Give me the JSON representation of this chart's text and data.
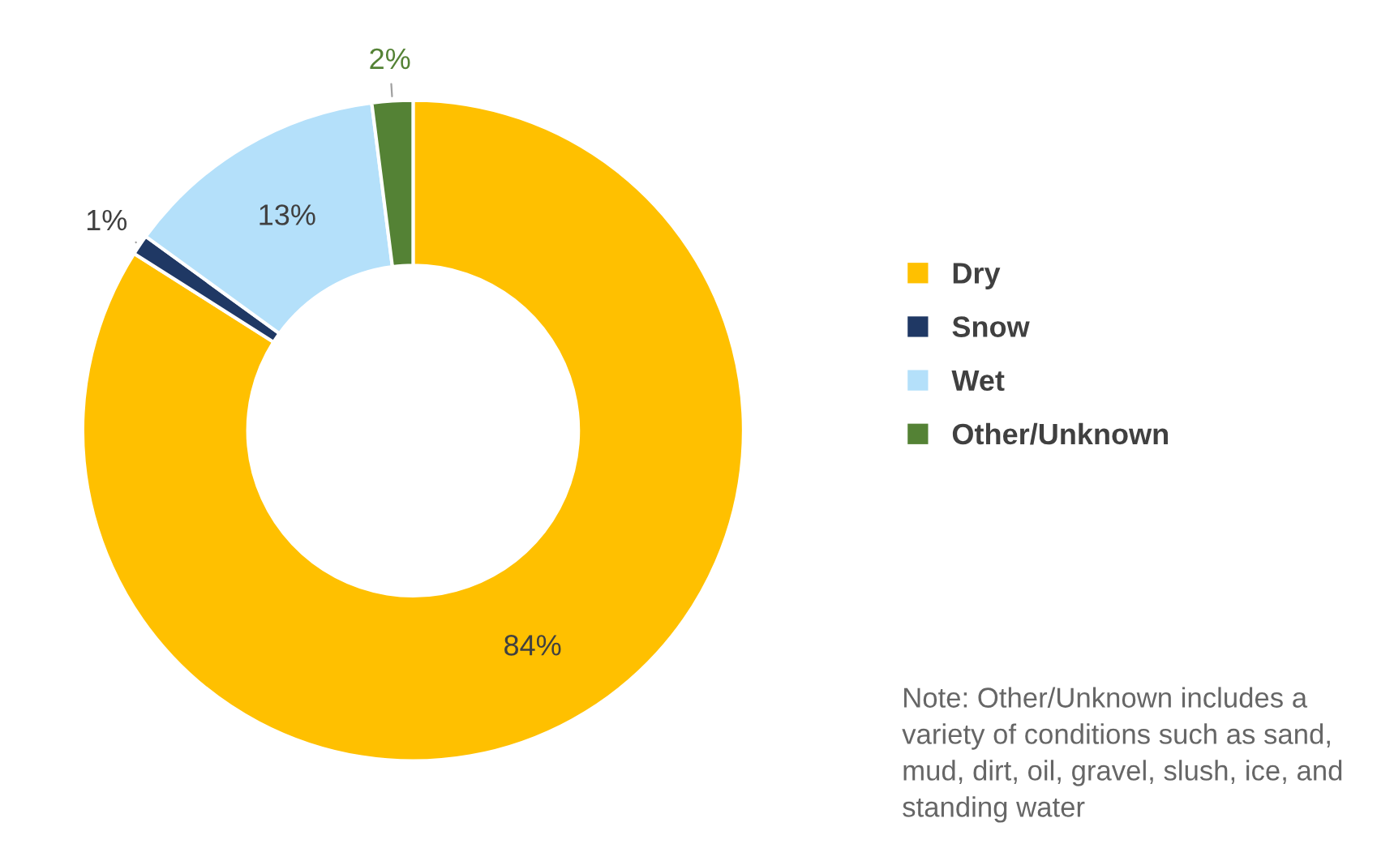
{
  "chart_data": {
    "type": "donut",
    "categories": [
      "Dry",
      "Snow",
      "Wet",
      "Other/Unknown"
    ],
    "values": [
      84,
      1,
      13,
      2
    ],
    "colors": [
      "#ffc000",
      "#1f3864",
      "#b4e0fa",
      "#548235"
    ],
    "value_labels": [
      "84%",
      "1%",
      "13%",
      "2%"
    ],
    "legend": "right",
    "annotations": [
      "Note: Other/Unknown includes a variety of conditions such as sand, mud, dirt, oil, gravel, slush, ice, and standing water"
    ]
  }
}
